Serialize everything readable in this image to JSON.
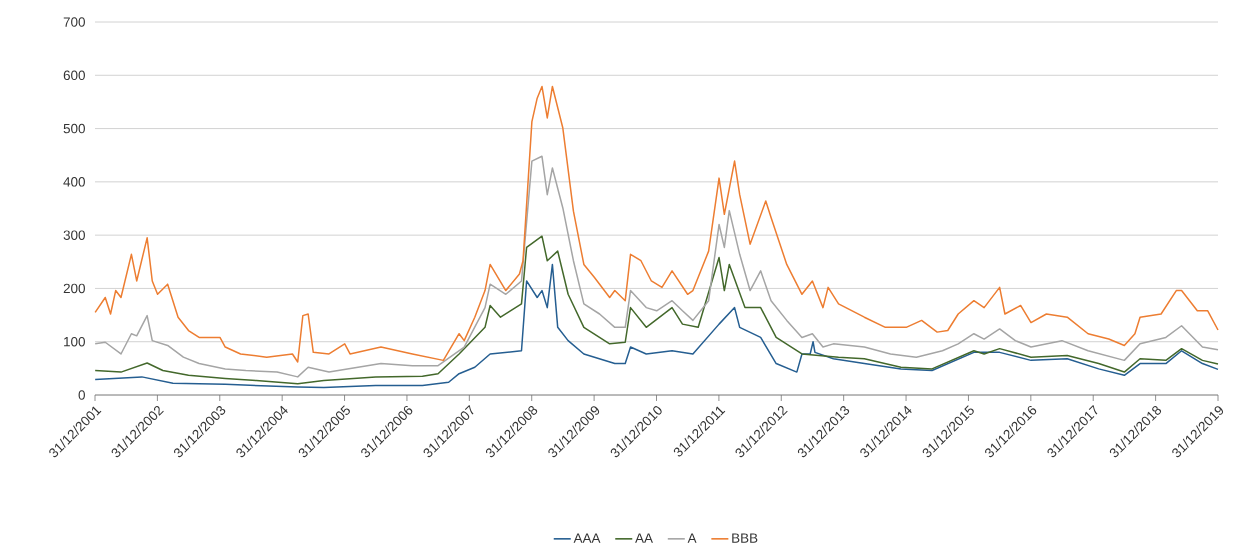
{
  "chart_data": {
    "type": "line",
    "xlim": [
      "2001-12-31",
      "2019-12-31"
    ],
    "xticks": [
      {
        "value": "2001-12-31",
        "label": "31/12/2001"
      },
      {
        "value": "2002-12-31",
        "label": "31/12/2002"
      },
      {
        "value": "2003-12-31",
        "label": "31/12/2003"
      },
      {
        "value": "2004-12-31",
        "label": "31/12/2004"
      },
      {
        "value": "2005-12-31",
        "label": "31/12/2005"
      },
      {
        "value": "2006-12-31",
        "label": "31/12/2006"
      },
      {
        "value": "2007-12-31",
        "label": "31/12/2007"
      },
      {
        "value": "2008-12-31",
        "label": "31/12/2008"
      },
      {
        "value": "2009-12-31",
        "label": "31/12/2009"
      },
      {
        "value": "2010-12-31",
        "label": "31/12/2010"
      },
      {
        "value": "2011-12-31",
        "label": "31/12/2011"
      },
      {
        "value": "2012-12-31",
        "label": "31/12/2012"
      },
      {
        "value": "2013-12-31",
        "label": "31/12/2013"
      },
      {
        "value": "2014-12-31",
        "label": "31/12/2014"
      },
      {
        "value": "2015-12-31",
        "label": "31/12/2015"
      },
      {
        "value": "2016-12-31",
        "label": "31/12/2016"
      },
      {
        "value": "2017-12-31",
        "label": "31/12/2017"
      },
      {
        "value": "2018-12-31",
        "label": "31/12/2018"
      },
      {
        "value": "2019-12-31",
        "label": "31/12/2019"
      }
    ],
    "ylim": [
      0,
      700
    ],
    "yticks": [
      0,
      100,
      200,
      300,
      400,
      500,
      600,
      700
    ],
    "grid": "y",
    "legend": "bottom",
    "marker": "none",
    "line_style": "solid",
    "series": [
      {
        "name": "AAA",
        "color": "#255e91",
        "x": [
          "2002-01",
          "2002-10",
          "2003-04",
          "2004-02",
          "2005-04",
          "2005-09",
          "2006-07",
          "2007-04",
          "2007-09",
          "2007-11",
          "2008-02",
          "2008-05",
          "2008-11",
          "2008-12",
          "2009-02",
          "2009-03",
          "2009-04",
          "2009-05",
          "2009-06",
          "2009-08",
          "2009-11",
          "2010-05",
          "2010-07",
          "2010-08",
          "2010-11",
          "2011-04",
          "2011-08",
          "2012-01",
          "2012-04",
          "2012-05",
          "2012-09",
          "2012-12",
          "2013-04",
          "2013-05",
          "2013-06-18",
          "2013-07-05",
          "2013-07-16",
          "2013-11",
          "2014-05",
          "2014-12",
          "2015-06",
          "2016-02",
          "2016-07",
          "2017-01",
          "2017-08",
          "2018-02",
          "2018-07",
          "2018-10",
          "2019-03",
          "2019-06",
          "2019-10",
          "2019-12-31"
        ],
        "values": [
          29,
          34,
          22,
          20,
          15,
          14,
          18,
          18,
          24,
          40,
          52,
          77,
          83,
          214,
          183,
          196,
          164,
          245,
          127,
          102,
          77,
          59,
          59,
          90,
          77,
          83,
          77,
          133,
          164,
          127,
          108,
          59,
          43,
          77,
          77,
          100,
          80,
          68,
          59,
          49,
          46,
          80,
          80,
          65,
          68,
          49,
          37,
          59,
          59,
          83,
          59,
          48
        ]
      },
      {
        "name": "AA",
        "color": "#43682b",
        "x": [
          "2002-01",
          "2002-06",
          "2002-11",
          "2003-02",
          "2003-07",
          "2004-02",
          "2004-08",
          "2005-04",
          "2005-09",
          "2006-07",
          "2007-04",
          "2007-07",
          "2007-11",
          "2008-04",
          "2008-05",
          "2008-07",
          "2008-11",
          "2008-12",
          "2009-03",
          "2009-04",
          "2009-06",
          "2009-08",
          "2009-11",
          "2010-04",
          "2010-07",
          "2010-08",
          "2010-11",
          "2011-04",
          "2011-06",
          "2011-09",
          "2012-01",
          "2012-02",
          "2012-03",
          "2012-06",
          "2012-09",
          "2012-12",
          "2013-05",
          "2013-12",
          "2014-05",
          "2014-12",
          "2015-06",
          "2016-02",
          "2016-04",
          "2016-07",
          "2017-01",
          "2017-08",
          "2018-02",
          "2018-07",
          "2018-10",
          "2019-03",
          "2019-06",
          "2019-10",
          "2019-12-31"
        ],
        "values": [
          46,
          43,
          60,
          46,
          37,
          31,
          27,
          21,
          27,
          34,
          35,
          40,
          77,
          127,
          168,
          146,
          171,
          277,
          298,
          252,
          270,
          189,
          127,
          96,
          99,
          164,
          127,
          164,
          133,
          127,
          258,
          196,
          245,
          164,
          164,
          108,
          77,
          71,
          68,
          52,
          49,
          83,
          77,
          87,
          71,
          74,
          59,
          43,
          68,
          65,
          87,
          65,
          58
        ]
      },
      {
        "name": "A",
        "color": "#a5a5a5",
        "x": [
          "2002-01",
          "2002-03",
          "2002-06",
          "2002-08",
          "2002-09",
          "2002-11",
          "2002-12",
          "2003-03",
          "2003-06",
          "2003-09",
          "2004-02",
          "2004-06",
          "2004-12",
          "2005-04",
          "2005-06",
          "2005-10",
          "2006-08",
          "2007-02",
          "2007-07",
          "2007-12",
          "2008-04",
          "2008-05",
          "2008-08",
          "2008-11",
          "2009-01",
          "2009-03",
          "2009-04",
          "2009-05",
          "2009-07",
          "2009-09",
          "2009-11",
          "2010-02",
          "2010-05",
          "2010-07",
          "2010-08",
          "2010-11",
          "2011-01",
          "2011-04",
          "2011-06",
          "2011-08",
          "2011-11",
          "2012-01",
          "2012-02",
          "2012-03",
          "2012-05",
          "2012-07",
          "2012-09",
          "2012-11",
          "2013-02",
          "2013-05",
          "2013-07",
          "2013-09",
          "2013-11",
          "2014-05",
          "2014-10",
          "2015-03",
          "2015-08",
          "2015-11",
          "2016-02",
          "2016-04",
          "2016-07",
          "2016-10",
          "2017-01",
          "2017-07",
          "2017-12",
          "2018-07",
          "2018-10",
          "2019-03",
          "2019-06",
          "2019-10",
          "2019-12-31"
        ],
        "values": [
          96,
          99,
          77,
          115,
          111,
          149,
          102,
          93,
          71,
          59,
          49,
          46,
          43,
          34,
          52,
          43,
          59,
          55,
          55,
          90,
          164,
          208,
          189,
          214,
          439,
          448,
          376,
          426,
          351,
          252,
          171,
          152,
          127,
          127,
          196,
          164,
          158,
          177,
          158,
          140,
          177,
          320,
          277,
          346,
          264,
          196,
          233,
          177,
          140,
          108,
          115,
          90,
          96,
          90,
          77,
          71,
          83,
          96,
          115,
          105,
          124,
          102,
          90,
          102,
          83,
          65,
          96,
          108,
          130,
          90,
          85
        ]
      },
      {
        "name": "BBB",
        "color": "#ed7d31",
        "x": [
          "2002-01",
          "2002-03",
          "2002-04",
          "2002-05",
          "2002-06",
          "2002-08",
          "2002-09",
          "2002-11",
          "2002-12",
          "2003-01",
          "2003-03",
          "2003-05",
          "2003-07",
          "2003-09",
          "2004-01",
          "2004-02",
          "2004-05",
          "2004-10",
          "2005-03",
          "2005-04",
          "2005-05",
          "2005-06",
          "2005-07",
          "2005-10",
          "2006-01",
          "2006-02",
          "2006-08",
          "2007-02",
          "2007-08",
          "2007-11",
          "2007-12",
          "2008-02",
          "2008-04",
          "2008-05",
          "2008-08",
          "2008-10-20",
          "2008-11-10",
          "2009-01",
          "2009-02",
          "2009-03",
          "2009-04",
          "2009-05",
          "2009-07",
          "2009-09",
          "2009-11",
          "2010-01",
          "2010-04",
          "2010-05",
          "2010-07",
          "2010-08",
          "2010-10",
          "2010-12",
          "2011-02",
          "2011-04",
          "2011-07",
          "2011-08",
          "2011-11",
          "2012-01",
          "2012-02",
          "2012-04",
          "2012-05",
          "2012-07",
          "2012-10",
          "2012-11",
          "2013-02",
          "2013-05",
          "2013-07",
          "2013-09",
          "2013-10",
          "2013-12",
          "2014-05",
          "2014-09",
          "2015-01",
          "2015-04",
          "2015-07",
          "2015-09",
          "2015-11",
          "2016-02",
          "2016-04",
          "2016-07",
          "2016-08",
          "2016-11",
          "2017-01",
          "2017-04",
          "2017-08",
          "2017-12",
          "2018-04",
          "2018-07",
          "2018-09",
          "2018-10",
          "2019-02",
          "2019-05",
          "2019-06",
          "2019-09",
          "2019-11",
          "2019-12-31"
        ],
        "values": [
          155,
          183,
          152,
          196,
          183,
          264,
          214,
          295,
          214,
          189,
          208,
          146,
          121,
          108,
          108,
          90,
          77,
          71,
          77,
          62,
          149,
          152,
          80,
          77,
          96,
          77,
          90,
          77,
          65,
          115,
          102,
          146,
          196,
          245,
          196,
          227,
          252,
          513,
          557,
          579,
          520,
          579,
          501,
          345,
          245,
          221,
          183,
          196,
          177,
          264,
          252,
          214,
          202,
          233,
          189,
          196,
          270,
          407,
          339,
          439,
          376,
          283,
          364,
          333,
          245,
          189,
          214,
          164,
          202,
          171,
          146,
          127,
          127,
          140,
          118,
          121,
          152,
          177,
          164,
          202,
          152,
          168,
          136,
          152,
          146,
          115,
          105,
          93,
          115,
          146,
          152,
          196,
          196,
          158,
          158,
          122
        ]
      }
    ]
  }
}
